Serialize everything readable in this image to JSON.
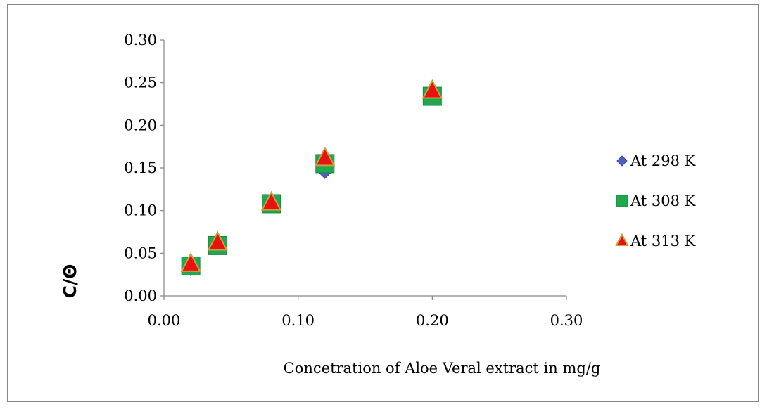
{
  "chart_data": {
    "type": "scatter",
    "xlabel": "Concetration  of Aloe Veral extract in mg/g",
    "ylabel": "C/Θ",
    "xlim": [
      0,
      0.3
    ],
    "ylim": [
      0,
      0.3
    ],
    "x_ticks": [
      "0.00",
      "0.10",
      "0.20",
      "0.30"
    ],
    "y_ticks": [
      "0.00",
      "0.05",
      "0.10",
      "0.15",
      "0.20",
      "0.25",
      "0.30"
    ],
    "grid": false,
    "legend_position": "right",
    "series": [
      {
        "name": "At 298 K",
        "marker": "diamond",
        "color": "#4F5FBF",
        "x": [
          0.02,
          0.04,
          0.08,
          0.12,
          0.2
        ],
        "y": [
          0.031,
          0.057,
          0.105,
          0.145,
          0.235
        ]
      },
      {
        "name": "At 308 K",
        "marker": "square",
        "color": "#1FA84F",
        "x": [
          0.02,
          0.04,
          0.08,
          0.12,
          0.2
        ],
        "y": [
          0.035,
          0.059,
          0.108,
          0.155,
          0.234
        ]
      },
      {
        "name": "At 313 K",
        "marker": "triangle",
        "color": "#E8130F",
        "stroke": "#C8A040",
        "x": [
          0.02,
          0.04,
          0.08,
          0.12,
          0.2
        ],
        "y": [
          0.037,
          0.062,
          0.109,
          0.161,
          0.24
        ]
      }
    ]
  }
}
